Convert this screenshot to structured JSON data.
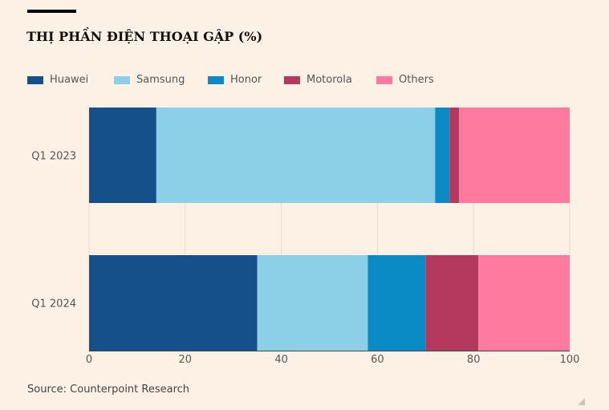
{
  "chart_data": {
    "type": "bar",
    "orientation": "horizontal",
    "stacked": true,
    "title": "THỊ PHẦN ĐIỆN THOẠI GẬP (%)",
    "categories": [
      "Q1 2023",
      "Q1 2024"
    ],
    "series": [
      {
        "name": "Huawei",
        "color": "#16508a",
        "values": [
          14,
          35
        ]
      },
      {
        "name": "Samsung",
        "color": "#8bd0e6",
        "values": [
          58,
          23
        ]
      },
      {
        "name": "Honor",
        "color": "#0b8bc6",
        "values": [
          3,
          12
        ]
      },
      {
        "name": "Motorola",
        "color": "#b3395e",
        "values": [
          2,
          11
        ]
      },
      {
        "name": "Others",
        "color": "#ff7a9e",
        "values": [
          23,
          19
        ]
      }
    ],
    "xlim": [
      0,
      100
    ],
    "xticks": [
      "0",
      "20",
      "40",
      "60",
      "80",
      "100"
    ],
    "grid": true,
    "legend": "top-left",
    "source": "Source: Counterpoint Research"
  }
}
